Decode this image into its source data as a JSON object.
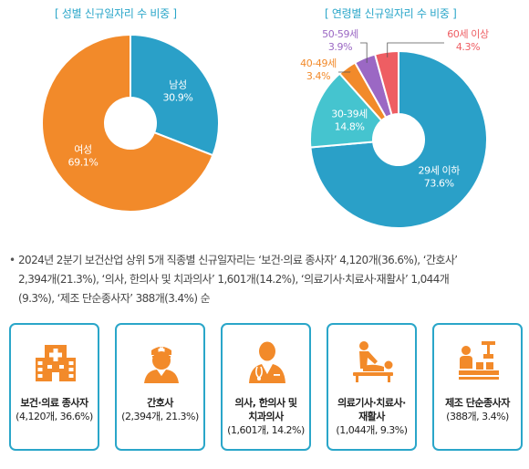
{
  "chart_data": [
    {
      "type": "pie",
      "title": "[ 성별 신규일자리 수 비중 ]",
      "categories": [
        "남성",
        "여성"
      ],
      "values": [
        30.9,
        69.1
      ],
      "value_labels": [
        "30.9%",
        "69.1%"
      ],
      "colors": [
        "#2aa0c8",
        "#f28a2a"
      ],
      "legend": "none"
    },
    {
      "type": "pie",
      "title": "[ 연령별 신규일자리 수 비중 ]",
      "categories": [
        "29세 이하",
        "30-39세",
        "40-49세",
        "50-59세",
        "60세 이상"
      ],
      "values": [
        73.6,
        14.8,
        3.4,
        3.9,
        4.3
      ],
      "value_labels": [
        "73.6%",
        "14.8%",
        "3.4%",
        "3.9%",
        "4.3%"
      ],
      "colors": [
        "#2aa0c8",
        "#45c4cf",
        "#f28a2a",
        "#9b68c4",
        "#ee5e63"
      ],
      "legend": "none"
    }
  ],
  "summary": {
    "line1": "2024년 2분기 보건산업 상위 5개 직종별 신규일자리는 ‘보건·의료 종사자’ 4,120개(36.6%), ‘간호사’",
    "line2": "2,394개(21.3%), ‘의사, 한의사 및 치과의사’ 1,601개(14.2%), ‘의료기사·치료사·재활사’ 1,044개",
    "line3": "(9.3%), ‘제조 단순종사자’ 388개(3.4%) 순"
  },
  "cards": [
    {
      "name": "보건·의료 종사자",
      "stat": "(4,120개, 36.6%)",
      "icon": "hospital-icon"
    },
    {
      "name": "간호사",
      "stat": "(2,394개, 21.3%)",
      "icon": "nurse-icon"
    },
    {
      "name_line1": "의사, 한의사 및",
      "name_line2": "치과의사",
      "stat": "(1,601개, 14.2%)",
      "icon": "doctor-icon"
    },
    {
      "name_line1": "의료기사·치료사·",
      "name_line2": "재활사",
      "stat": "(1,044개, 9.3%)",
      "icon": "therapist-icon"
    },
    {
      "name": "제조 단순종사자",
      "stat": "(388개, 3.4%)",
      "icon": "factory-worker-icon"
    }
  ],
  "colors": {
    "accent": "#2aa6c9",
    "icon": "#f28a2a"
  }
}
